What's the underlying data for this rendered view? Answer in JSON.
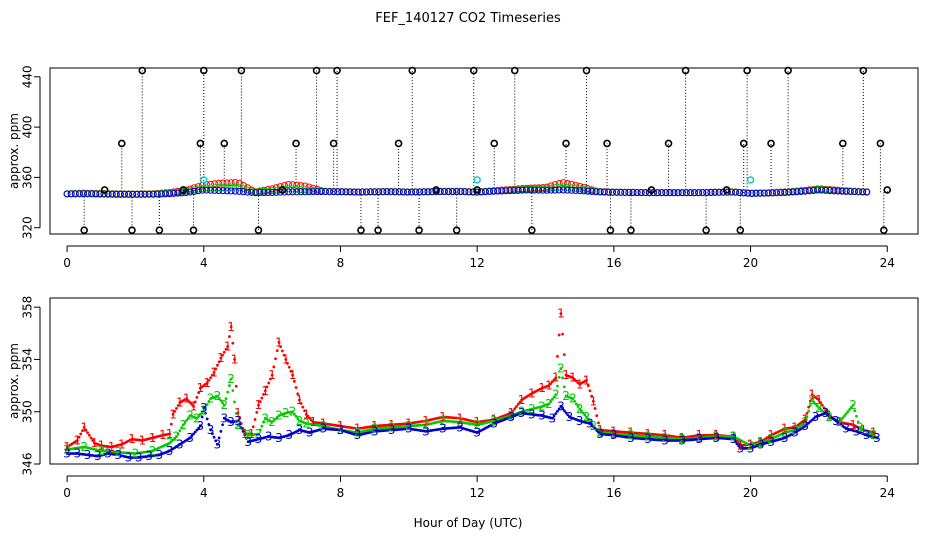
{
  "figure": {
    "title": "FEF_140127  CO2 Timeseries",
    "xlabel": "Hour of Day (UTC)"
  },
  "colors": {
    "series1": "#ff0000",
    "series2": "#00cc00",
    "series3": "#0000cc",
    "flagged": "#000000",
    "cyan": "#00cccc",
    "axis": "#000000"
  },
  "chart_data": [
    {
      "type": "scatter",
      "panel": "top",
      "title": "FEF_140127  CO2 Timeseries",
      "xlabel": "",
      "ylabel": "approx. ppm",
      "xlim": [
        -0.5,
        24.9
      ],
      "ylim": [
        315,
        447
      ],
      "xticks": [
        0,
        4,
        8,
        12,
        16,
        20,
        24
      ],
      "yticks": [
        320,
        360,
        400,
        440
      ],
      "base_series": [
        {
          "name": "1",
          "color": "#ff0000",
          "x": [
            0,
            0.5,
            1,
            1.5,
            2,
            2.5,
            3,
            3.5,
            4,
            4.5,
            5,
            5.5,
            6,
            6.5,
            7,
            7.5,
            8,
            8.5,
            9,
            9.5,
            10,
            10.5,
            11,
            11.5,
            12,
            12.5,
            13,
            13.5,
            14,
            14.5,
            15,
            15.5,
            16,
            16.5,
            17,
            17.5,
            18,
            18.5,
            19,
            19.5,
            20,
            20.5,
            21,
            21.5,
            22,
            22.5,
            23,
            23.5
          ],
          "y": [
            347,
            347.5,
            347.2,
            347,
            346.8,
            347,
            348,
            350,
            354,
            355.5,
            356,
            348.5,
            351,
            354.5,
            353,
            349,
            348.8,
            348.5,
            348.7,
            348.8,
            348.5,
            348.7,
            349,
            349,
            348.5,
            349.5,
            350.5,
            351.5,
            352,
            356,
            353,
            349,
            348.3,
            348.2,
            348,
            348,
            348,
            348,
            348.3,
            348.5,
            347.5,
            347.8,
            348.5,
            349.5,
            351,
            350,
            349,
            348.5
          ]
        },
        {
          "name": "2",
          "color": "#00cc00",
          "x": [
            0,
            0.5,
            1,
            1.5,
            2,
            2.5,
            3,
            3.5,
            4,
            4.5,
            5,
            5.5,
            6,
            6.5,
            7,
            7.5,
            8,
            8.5,
            9,
            9.5,
            10,
            10.5,
            11,
            11.5,
            12,
            12.5,
            13,
            13.5,
            14,
            14.5,
            15,
            15.5,
            16,
            16.5,
            17,
            17.5,
            18,
            18.5,
            19,
            19.5,
            20,
            20.5,
            21,
            21.5,
            22,
            22.5,
            23,
            23.5
          ],
          "y": [
            347,
            347.2,
            347,
            346.8,
            346.7,
            346.8,
            347.5,
            349,
            351.5,
            352,
            352.5,
            348.2,
            349.5,
            351,
            350,
            348.9,
            348.6,
            348.4,
            348.6,
            348.7,
            348.4,
            348.6,
            348.8,
            348.8,
            348.4,
            349.2,
            350,
            350.6,
            351,
            352.5,
            351,
            348.8,
            348.2,
            348.1,
            347.9,
            347.9,
            347.9,
            347.9,
            348.2,
            348.4,
            347.4,
            347.7,
            348.3,
            349.2,
            350.6,
            349.6,
            348.9,
            348.4
          ]
        },
        {
          "name": "3",
          "color": "#0000cc",
          "x": [
            0,
            0.5,
            1,
            1.5,
            2,
            2.5,
            3,
            3.5,
            4,
            4.5,
            5,
            5.5,
            6,
            6.5,
            7,
            7.5,
            8,
            8.5,
            9,
            9.5,
            10,
            10.5,
            11,
            11.5,
            12,
            12.5,
            13,
            13.5,
            14,
            14.5,
            15,
            15.5,
            16,
            16.5,
            17,
            17.5,
            18,
            18.5,
            19,
            19.5,
            20,
            20.5,
            21,
            21.5,
            22,
            22.5,
            23,
            23.5
          ],
          "y": [
            346.8,
            347,
            346.7,
            346.5,
            346.5,
            346.6,
            347,
            348,
            350,
            349.5,
            349,
            347.8,
            348,
            348.5,
            348.6,
            348.7,
            348.5,
            348.3,
            348.5,
            348.6,
            348.3,
            348.5,
            348.7,
            348.7,
            348.2,
            349,
            349.5,
            350,
            349.8,
            350,
            349.5,
            348.5,
            348.1,
            348,
            347.8,
            347.8,
            347.8,
            347.8,
            348.1,
            348.3,
            347.2,
            347.5,
            348,
            348.8,
            350,
            349.2,
            348.7,
            348.2
          ]
        }
      ],
      "flagged_points": {
        "color": "#000000",
        "x": [
          0.5,
          1.1,
          1.6,
          1.9,
          2.2,
          2.7,
          3.4,
          3.7,
          3.9,
          4.0,
          4.6,
          5.1,
          5.6,
          6.3,
          6.7,
          7.3,
          7.8,
          7.9,
          8.6,
          9.1,
          9.7,
          10.1,
          10.3,
          10.8,
          11.4,
          11.9,
          12.0,
          12.5,
          13.1,
          13.6,
          14.6,
          15.2,
          15.8,
          15.9,
          16.5,
          17.1,
          17.6,
          18.1,
          18.7,
          19.3,
          19.7,
          19.8,
          19.9,
          20.6,
          21.1,
          22.7,
          23.3,
          23.8,
          23.9,
          24.0
        ],
        "y": [
          318,
          350,
          387,
          318,
          445,
          318,
          350,
          318,
          387,
          445,
          387,
          445,
          318,
          350,
          387,
          445,
          387,
          445,
          318,
          318,
          387,
          445,
          318,
          350,
          318,
          445,
          350,
          387,
          445,
          318,
          387,
          445,
          387,
          318,
          318,
          350,
          387,
          445,
          318,
          350,
          318,
          387,
          445,
          387,
          445,
          387,
          445,
          387,
          318,
          350
        ]
      },
      "cyan_points": {
        "color": "#00cccc",
        "x": [
          4.0,
          12.0,
          20.0
        ],
        "y": [
          358,
          358,
          358
        ]
      }
    },
    {
      "type": "scatter",
      "panel": "bottom",
      "xlabel": "Hour of Day (UTC)",
      "ylabel": "approx. ppm",
      "xlim": [
        -0.5,
        24.9
      ],
      "ylim": [
        346,
        358.7
      ],
      "xticks": [
        0,
        4,
        8,
        12,
        16,
        20,
        24
      ],
      "yticks": [
        346,
        350,
        354,
        358
      ],
      "series": [
        {
          "name": "1",
          "label_char": "1",
          "color": "#ff0000",
          "x": [
            0,
            0.3,
            0.5,
            0.8,
            1,
            1.3,
            1.6,
            1.9,
            2.2,
            2.5,
            2.8,
            3.0,
            3.1,
            3.3,
            3.5,
            3.7,
            3.9,
            4.1,
            4.3,
            4.5,
            4.7,
            4.8,
            4.9,
            5.0,
            5.2,
            5.4,
            5.6,
            5.8,
            6.0,
            6.2,
            6.4,
            6.6,
            6.8,
            7.0,
            7.2,
            7.5,
            8.0,
            8.5,
            9.0,
            9.5,
            10.0,
            10.5,
            11.0,
            11.5,
            12.0,
            12.5,
            13.0,
            13.3,
            13.6,
            13.9,
            14.1,
            14.3,
            14.45,
            14.6,
            14.8,
            15.0,
            15.2,
            15.4,
            15.6,
            16.0,
            16.5,
            17.0,
            17.5,
            18.0,
            18.5,
            19.0,
            19.5,
            19.7,
            20.0,
            20.3,
            20.6,
            21.0,
            21.3,
            21.6,
            21.8,
            22.0,
            22.3,
            22.6,
            23.0,
            23.3,
            23.6
          ],
          "y": [
            347.3,
            347.8,
            348.8,
            347.6,
            347.4,
            347.3,
            347.5,
            347.9,
            347.8,
            348.0,
            348.2,
            348.3,
            349.8,
            350.7,
            351.0,
            350.4,
            351.8,
            352.2,
            353.0,
            354.1,
            355.0,
            356.5,
            354.0,
            349.9,
            348.3,
            348.3,
            350.5,
            351.6,
            352.8,
            355.3,
            354.0,
            352.8,
            350.9,
            349.8,
            349.2,
            349.1,
            348.9,
            348.7,
            348.9,
            349.0,
            349.1,
            349.3,
            349.6,
            349.5,
            349.2,
            349.4,
            349.9,
            350.9,
            351.4,
            351.8,
            352.0,
            352.6,
            357.5,
            352.8,
            352.6,
            352.1,
            352.4,
            350.8,
            348.6,
            348.5,
            348.4,
            348.3,
            348.2,
            348.0,
            348.2,
            348.2,
            348.1,
            347.4,
            347.5,
            347.7,
            348.2,
            348.7,
            348.8,
            349.4,
            351.3,
            350.9,
            349.7,
            349.2,
            349.0,
            348.6,
            348.4
          ]
        },
        {
          "name": "2",
          "label_char": "2",
          "color": "#00cc00",
          "x": [
            0,
            0.5,
            1,
            1.5,
            2,
            2.5,
            3.0,
            3.2,
            3.4,
            3.6,
            3.8,
            4.0,
            4.2,
            4.4,
            4.6,
            4.8,
            5.0,
            5.3,
            5.6,
            5.8,
            6.0,
            6.2,
            6.4,
            6.6,
            6.8,
            7.0,
            7.5,
            8,
            8.5,
            9,
            9.5,
            10,
            10.5,
            11,
            11.5,
            12,
            12.5,
            13,
            13.3,
            13.6,
            13.9,
            14.1,
            14.3,
            14.45,
            14.6,
            14.8,
            15.0,
            15.2,
            15.4,
            15.6,
            16,
            16.5,
            17,
            17.5,
            18,
            18.5,
            19,
            19.5,
            20,
            20.3,
            20.6,
            21,
            21.3,
            21.6,
            21.8,
            22,
            22.3,
            22.6,
            23.0,
            23.2,
            23.6
          ],
          "y": [
            347.1,
            347.3,
            347.0,
            346.9,
            346.8,
            347.0,
            347.6,
            348.1,
            349.0,
            349.7,
            349.5,
            350.1,
            351.0,
            351.2,
            350.5,
            352.5,
            349.0,
            348.2,
            348.3,
            349.5,
            349.2,
            349.7,
            349.9,
            350.0,
            349.3,
            349.1,
            348.9,
            348.6,
            348.4,
            348.7,
            348.8,
            348.9,
            349.0,
            349.3,
            349.2,
            349.0,
            349.3,
            349.7,
            350.0,
            350.2,
            350.4,
            350.6,
            351.3,
            353.3,
            351.2,
            351.0,
            350.2,
            349.6,
            348.9,
            348.4,
            348.3,
            348.2,
            348.1,
            348.0,
            347.9,
            348.0,
            348.1,
            348.1,
            347.4,
            347.6,
            347.9,
            348.4,
            348.6,
            349.2,
            350.9,
            350.3,
            349.6,
            349.2,
            350.5,
            348.8,
            348.2
          ]
        },
        {
          "name": "3",
          "label_char": "3",
          "color": "#0000cc",
          "x": [
            0,
            0.3,
            0.6,
            0.9,
            1.2,
            1.5,
            1.8,
            2.1,
            2.4,
            2.7,
            3.0,
            3.3,
            3.6,
            3.9,
            4.0,
            4.2,
            4.4,
            4.6,
            4.8,
            5.0,
            5.3,
            5.6,
            5.9,
            6.2,
            6.5,
            6.8,
            7.1,
            7.5,
            8,
            8.5,
            9,
            9.5,
            10,
            10.5,
            11,
            11.5,
            12,
            12.5,
            13,
            13.3,
            13.6,
            13.9,
            14.2,
            14.45,
            14.7,
            15.0,
            15.3,
            15.6,
            16,
            16.5,
            17,
            17.5,
            18,
            18.5,
            19,
            19.5,
            19.7,
            20,
            20.3,
            20.6,
            21,
            21.3,
            21.6,
            21.9,
            22.2,
            22.5,
            22.8,
            23.1,
            23.4,
            23.7
          ],
          "y": [
            346.8,
            346.8,
            346.7,
            346.6,
            346.8,
            346.7,
            346.5,
            346.5,
            346.6,
            346.7,
            347.0,
            347.5,
            348.0,
            348.9,
            350.3,
            348.6,
            347.5,
            349.5,
            349.2,
            349.3,
            347.7,
            347.9,
            348.1,
            348.0,
            348.2,
            348.6,
            348.4,
            348.7,
            348.6,
            348.2,
            348.5,
            348.6,
            348.7,
            348.5,
            348.7,
            348.8,
            348.4,
            349.1,
            349.6,
            349.9,
            349.8,
            349.7,
            349.5,
            350.4,
            349.6,
            349.3,
            349.1,
            348.3,
            348.2,
            348.0,
            347.9,
            347.8,
            347.8,
            347.9,
            348.0,
            347.9,
            347.2,
            347.2,
            347.5,
            347.7,
            348.0,
            348.4,
            348.9,
            349.6,
            349.9,
            349.3,
            348.7,
            348.5,
            348.2,
            348.0
          ]
        }
      ]
    }
  ]
}
